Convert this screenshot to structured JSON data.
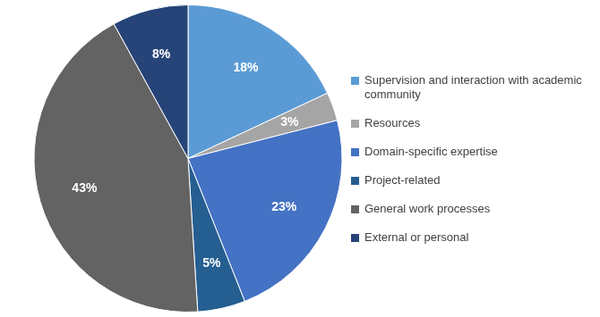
{
  "chart_data": {
    "type": "pie",
    "categories": [
      "Supervision and interaction with academic community",
      "Resources",
      "Domain-specific expertise",
      "Project-related",
      "General work processes",
      "External or personal"
    ],
    "values": [
      18,
      3,
      23,
      5,
      43,
      8
    ],
    "value_labels": [
      "18%",
      "3%",
      "23%",
      "5%",
      "43%",
      "8%"
    ],
    "colors": [
      "#5b9bd5",
      "#a5a5a5",
      "#4472c4",
      "#255e91",
      "#636363",
      "#264478"
    ],
    "data_labels": true,
    "legend": "right"
  }
}
